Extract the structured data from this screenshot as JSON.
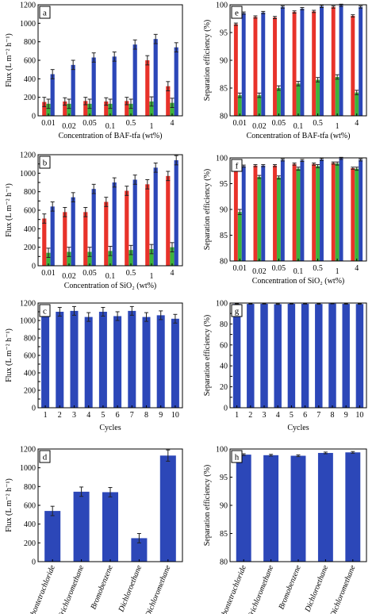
{
  "colors": {
    "red": "#e8322a",
    "green": "#3cb43c",
    "blue": "#2c47b8",
    "error": "#222222"
  },
  "chart_data": [
    {
      "letter": "a",
      "type": "bar",
      "ylabel": "Flux (L m⁻² h⁻¹)",
      "xlabel": "Concentration of BAF-tfa (wt%)",
      "categories": [
        "0.01",
        "0.02",
        "0.05",
        "0.1",
        "0.5",
        "1",
        "4"
      ],
      "ylim": [
        0,
        1200
      ],
      "yticks": [
        0,
        200,
        400,
        600,
        800,
        1000,
        1200
      ],
      "series": [
        {
          "color": "red",
          "values": [
            150,
            155,
            160,
            155,
            160,
            600,
            320
          ],
          "errors": [
            50,
            40,
            40,
            40,
            40,
            50,
            50
          ]
        },
        {
          "color": "green",
          "values": [
            130,
            130,
            130,
            130,
            130,
            155,
            140
          ],
          "errors": [
            50,
            50,
            50,
            50,
            50,
            50,
            50
          ]
        },
        {
          "color": "blue",
          "values": [
            450,
            550,
            630,
            640,
            770,
            830,
            740
          ],
          "errors": [
            50,
            50,
            50,
            50,
            50,
            50,
            50
          ]
        }
      ]
    },
    {
      "letter": "e",
      "type": "bar",
      "ylabel": "Separation efficiency (%)",
      "xlabel": "Concentration of BAF-tfa (wt%)",
      "categories": [
        "0.01",
        "0.02",
        "0.05",
        "0.1",
        "0.5",
        "1",
        "4"
      ],
      "ylim": [
        80,
        100
      ],
      "yticks": [
        80,
        85,
        90,
        95,
        100
      ],
      "series": [
        {
          "color": "red",
          "values": [
            96.5,
            97.8,
            97.7,
            98.7,
            98.8,
            99.6,
            98.0
          ],
          "errors": [
            0.2,
            0.2,
            0.2,
            0.2,
            0.2,
            0.2,
            0.2
          ]
        },
        {
          "color": "green",
          "values": [
            83.7,
            83.7,
            85.0,
            85.8,
            86.5,
            87.0,
            84.2
          ],
          "errors": [
            0.4,
            0.4,
            0.4,
            0.4,
            0.4,
            0.4,
            0.4
          ]
        },
        {
          "color": "blue",
          "values": [
            98.5,
            98.6,
            99.6,
            99.3,
            99.7,
            99.9,
            99.6
          ],
          "errors": [
            0.2,
            0.2,
            0.2,
            0.2,
            0.2,
            0.2,
            0.2
          ]
        }
      ]
    },
    {
      "letter": "b",
      "type": "bar",
      "ylabel": "Flux (L m⁻² h⁻¹)",
      "xlabel": "Concentration of SiO₂ (wt%)",
      "categories": [
        "0.01",
        "0.02",
        "0.05",
        "0.1",
        "0.5",
        "1",
        "4"
      ],
      "ylim": [
        0,
        1200
      ],
      "yticks": [
        0,
        100,
        200,
        300,
        400,
        500,
        600,
        700,
        800,
        900,
        1000,
        1100,
        1200
      ],
      "series": [
        {
          "color": "red",
          "values": [
            510,
            580,
            580,
            690,
            810,
            880,
            970
          ],
          "errors": [
            50,
            50,
            50,
            50,
            50,
            50,
            50
          ]
        },
        {
          "color": "green",
          "values": [
            140,
            150,
            150,
            160,
            170,
            180,
            200
          ],
          "errors": [
            50,
            50,
            50,
            50,
            50,
            50,
            50
          ]
        },
        {
          "color": "blue",
          "values": [
            640,
            740,
            830,
            900,
            930,
            1060,
            1140
          ],
          "errors": [
            50,
            50,
            50,
            50,
            50,
            50,
            50
          ]
        }
      ]
    },
    {
      "letter": "f",
      "type": "bar",
      "ylabel": "Separation efficiency (%)",
      "xlabel": "Concentration of SiO₂ (wt%)",
      "categories": [
        "0.01",
        "0.02",
        "0.05",
        "0.1",
        "0.5",
        "1",
        "4"
      ],
      "ylim": [
        80,
        100
      ],
      "yticks": [
        80,
        85,
        90,
        95,
        100
      ],
      "series": [
        {
          "color": "red",
          "values": [
            98.4,
            98.5,
            98.5,
            98.8,
            98.8,
            99.0,
            98.0
          ],
          "errors": [
            0.2,
            0.2,
            0.2,
            0.2,
            0.2,
            0.2,
            0.2
          ]
        },
        {
          "color": "green",
          "values": [
            89.5,
            96.3,
            96.2,
            97.9,
            98.4,
            98.9,
            97.9
          ],
          "errors": [
            0.5,
            0.3,
            0.3,
            0.3,
            0.3,
            0.3,
            0.3
          ]
        },
        {
          "color": "blue",
          "values": [
            98.4,
            98.5,
            99.6,
            99.5,
            99.7,
            99.9,
            99.6
          ],
          "errors": [
            0.2,
            0.2,
            0.2,
            0.2,
            0.2,
            0.2,
            0.2
          ]
        }
      ]
    },
    {
      "letter": "c",
      "type": "bar",
      "ylabel": "Flux (L m⁻² h⁻¹)",
      "xlabel": "Cycles",
      "categories": [
        "1",
        "2",
        "3",
        "4",
        "5",
        "6",
        "7",
        "8",
        "9",
        "10"
      ],
      "ylim": [
        0,
        1200
      ],
      "yticks": [
        0,
        100,
        200,
        300,
        400,
        500,
        600,
        700,
        800,
        900,
        1000,
        1100,
        1200
      ],
      "series": [
        {
          "color": "blue",
          "values": [
            1130,
            1100,
            1110,
            1040,
            1100,
            1050,
            1110,
            1040,
            1060,
            1020
          ],
          "errors": [
            50,
            50,
            50,
            50,
            50,
            50,
            50,
            50,
            50,
            50
          ]
        }
      ]
    },
    {
      "letter": "g",
      "type": "bar",
      "ylabel": "Separation efficiency (%)",
      "xlabel": "Cycles",
      "categories": [
        "1",
        "2",
        "3",
        "4",
        "5",
        "6",
        "7",
        "8",
        "9",
        "10"
      ],
      "ylim": [
        0,
        100
      ],
      "yticks": [
        0,
        10,
        20,
        30,
        40,
        50,
        60,
        70,
        80,
        90,
        100
      ],
      "series": [
        {
          "color": "blue",
          "values": [
            99.1,
            99.2,
            99.3,
            98.9,
            99.3,
            99.3,
            99.1,
            99.5,
            99.2,
            99.1
          ],
          "errors": [
            0.3,
            0.3,
            0.3,
            0.3,
            0.3,
            0.3,
            0.3,
            0.3,
            0.3,
            0.3
          ]
        }
      ]
    },
    {
      "letter": "d",
      "type": "bar",
      "ylabel": "Flux (L m⁻² h⁻¹)",
      "xlabel": "",
      "categories": [
        "Carbontetrachloride",
        "Trichloromethane",
        "Bromobenzene",
        "Dichloroethane",
        "Dichloromethane"
      ],
      "ylim": [
        0,
        1200
      ],
      "yticks": [
        0,
        200,
        400,
        600,
        800,
        1000,
        1200
      ],
      "series": [
        {
          "color": "blue",
          "values": [
            540,
            745,
            740,
            250,
            1130
          ],
          "errors": [
            50,
            50,
            50,
            50,
            60
          ]
        }
      ]
    },
    {
      "letter": "h",
      "type": "bar",
      "ylabel": "Separation efficiency (%)",
      "xlabel": "",
      "categories": [
        "Carbontetrachloride",
        "Trichloromethane",
        "Bromobenzene",
        "Dichloroethane",
        "Dichloromethane"
      ],
      "ylim": [
        80,
        100
      ],
      "yticks": [
        80,
        85,
        90,
        95,
        100
      ],
      "series": [
        {
          "color": "blue",
          "values": [
            99.0,
            98.9,
            98.8,
            99.3,
            99.4
          ],
          "errors": [
            0.15,
            0.15,
            0.15,
            0.15,
            0.15
          ]
        }
      ]
    }
  ]
}
